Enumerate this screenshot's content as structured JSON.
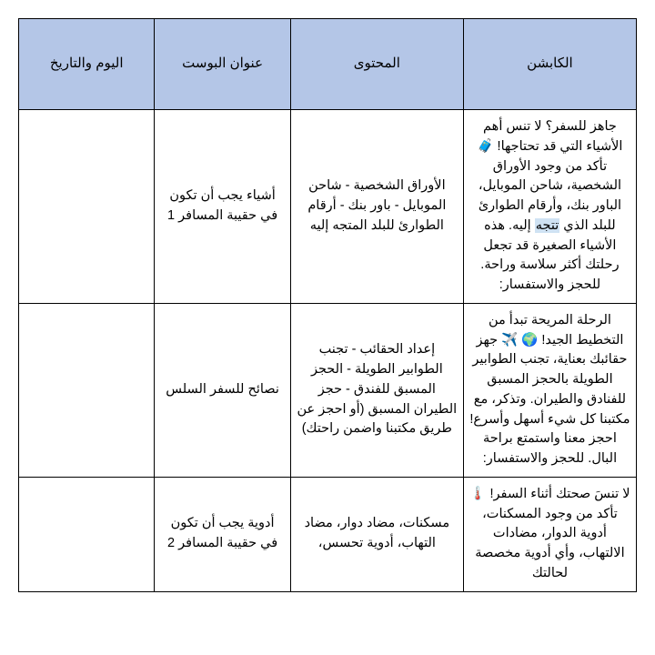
{
  "table": {
    "header_bg": "#b4c6e7",
    "border_color": "#000000",
    "columns": [
      {
        "key": "caption",
        "label": "الكابشن"
      },
      {
        "key": "content",
        "label": "المحتوى"
      },
      {
        "key": "title",
        "label": "عنوان البوست"
      },
      {
        "key": "date",
        "label": "اليوم والتاريخ"
      }
    ],
    "rows": [
      {
        "caption_pre": "جاهز للسفر؟ لا تنس أهم الأشياء التي قد تحتاجها! 🧳 تأكد من وجود الأوراق الشخصية، شاحن الموبايل، الباور بنك، وأرقام الطوارئ للبلد الذي ",
        "caption_hl": "تتجه",
        "caption_post": " إليه. هذه الأشياء الصغيرة قد تجعل رحلتك أكثر سلاسة وراحة. للحجز والاستفسار:",
        "content": "الأوراق الشخصية - شاحن الموبايل - باور بنك - أرقام الطوارئ للبلد المتجه إليه",
        "title": "أشياء يجب أن تكون في حقيبة المسافر 1",
        "date": ""
      },
      {
        "caption_pre": "الرحلة المريحة تبدأ من التخطيط الجيد! 🌍 ✈️ جهز حقائبك بعناية، تجنب الطوابير الطويلة بالحجز المسبق للفنادق والطيران. وتذكر، مع مكتبنا كل شيء أسهل وأسرع! احجز معنا واستمتع براحة البال. للحجز والاستفسار:",
        "caption_hl": "",
        "caption_post": "",
        "content": "إعداد الحقائب - تجنب الطوابير الطويلة - الحجز المسبق للفندق - حجز الطيران المسبق (أو احجز عن طريق مكتبنا واضمن راحتك)",
        "title": "نصائح للسفر السلس",
        "date": ""
      },
      {
        "caption_pre": "لا تنسَ صحتك أثناء السفر! 🌡️ تأكد من وجود المسكنات، أدوية الدوار، مضادات الالتهاب، وأي أدوية مخصصة لحالتك",
        "caption_hl": "",
        "caption_post": "",
        "content": "مسكنات، مضاد دوار، مضاد التهاب، أدوية تحسس،",
        "title": "أدوية يجب أن تكون في حقيبة المسافر 2",
        "date": ""
      }
    ]
  }
}
